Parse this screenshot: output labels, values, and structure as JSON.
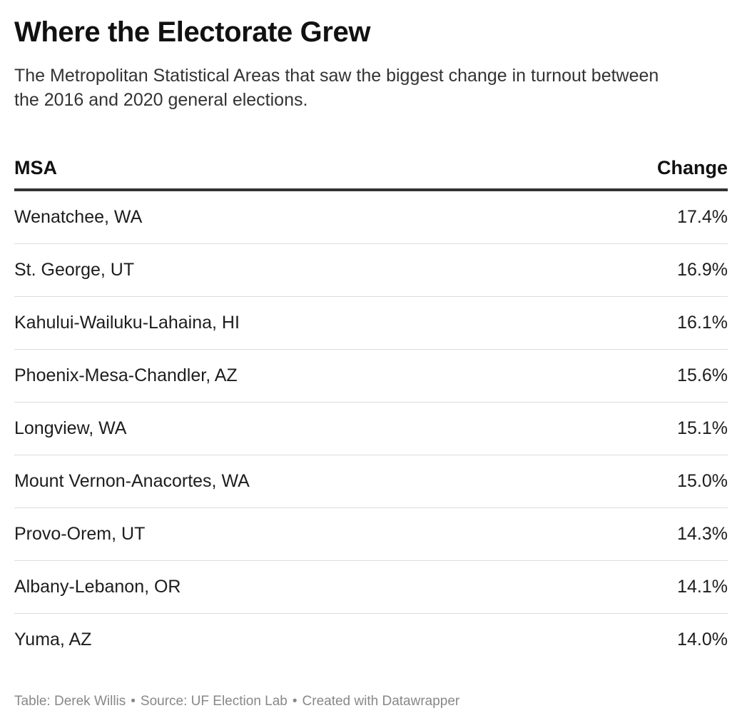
{
  "title": "Where the Electorate Grew",
  "subtitle": "The Metropolitan Statistical Areas that saw the biggest change in turnout between the 2016 and 2020 general elections.",
  "chart_data": {
    "type": "table",
    "columns": [
      "MSA",
      "Change"
    ],
    "rows": [
      {
        "msa": "Wenatchee, WA",
        "change": "17.4%"
      },
      {
        "msa": "St. George, UT",
        "change": "16.9%"
      },
      {
        "msa": "Kahului-Wailuku-Lahaina, HI",
        "change": "16.1%"
      },
      {
        "msa": "Phoenix-Mesa-Chandler, AZ",
        "change": "15.6%"
      },
      {
        "msa": "Longview, WA",
        "change": "15.1%"
      },
      {
        "msa": "Mount Vernon-Anacortes, WA",
        "change": "15.0%"
      },
      {
        "msa": "Provo-Orem, UT",
        "change": "14.3%"
      },
      {
        "msa": "Albany-Lebanon, OR",
        "change": "14.1%"
      },
      {
        "msa": "Yuma, AZ",
        "change": "14.0%"
      }
    ]
  },
  "footer": {
    "credit": "Table: Derek Willis",
    "source": "Source: UF Election Lab",
    "tool": "Created with Datawrapper",
    "separator": "•"
  }
}
